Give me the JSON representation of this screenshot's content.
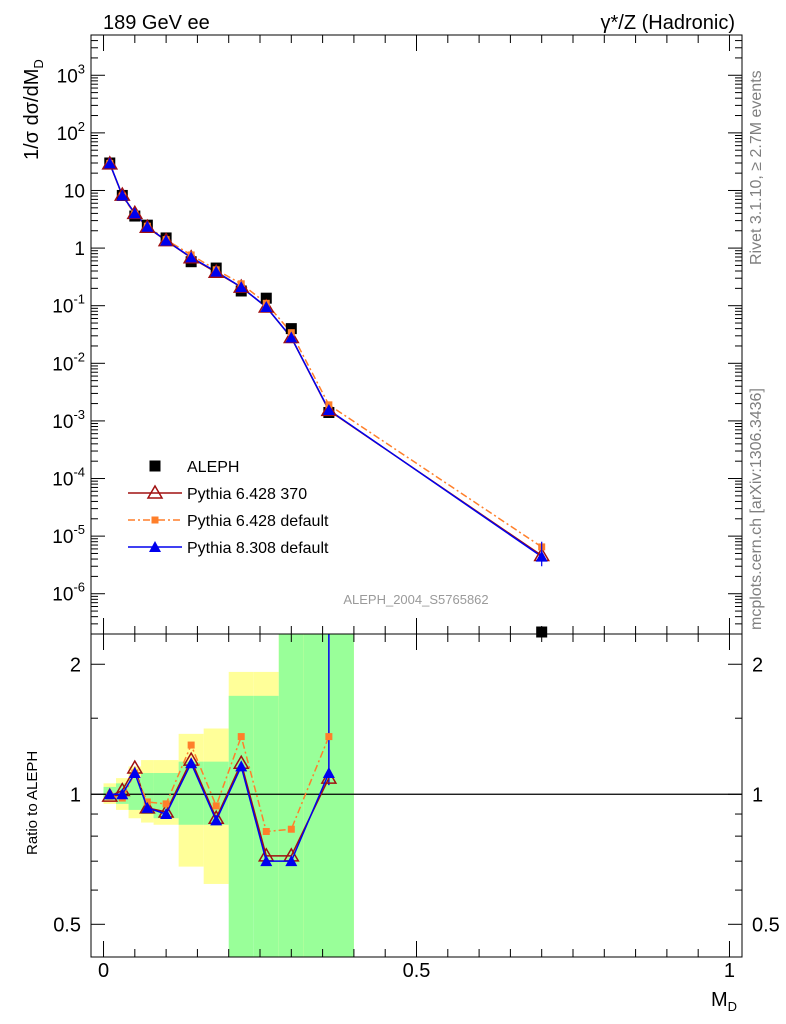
{
  "header": {
    "left": "189 GeV ee",
    "right_symbol": "γ*/Z",
    "right_text": "(Hadronic)"
  },
  "side_labels": {
    "rivet": "Rivet 3.1.10, ≥ 2.7M events",
    "mcplots": "mcplots.cern.ch [arXiv:1306.3436]"
  },
  "watermark": "ALEPH_2004_S5765862",
  "chart_data": [
    {
      "type": "line",
      "panel": "main",
      "ylabel": "1/σ  dσ/dM_D",
      "yscale": "log",
      "ylim": [
        2e-07,
        5000
      ],
      "xlim": [
        -0.02,
        1.02
      ],
      "yticks": [
        "10^-6",
        "10^-5",
        "10^-4",
        "10^-3",
        "10^-2",
        "10^-1",
        "1",
        "10",
        "10^2",
        "10^3"
      ],
      "legend_position": "bottom-left",
      "series": [
        {
          "name": "ALEPH",
          "color": "#000000",
          "marker": "square",
          "x": [
            0.01,
            0.03,
            0.05,
            0.07,
            0.1,
            0.14,
            0.18,
            0.22,
            0.26,
            0.3,
            0.36,
            0.7
          ],
          "y": [
            30,
            8.2,
            3.6,
            2.5,
            1.5,
            0.58,
            0.45,
            0.18,
            0.135,
            0.04,
            0.0014,
            2e-07
          ]
        },
        {
          "name": "Pythia 6.428 370",
          "color": "#a01010",
          "marker": "open-triangle",
          "x": [
            0.01,
            0.03,
            0.05,
            0.07,
            0.1,
            0.14,
            0.18,
            0.22,
            0.26,
            0.3,
            0.36,
            0.7
          ],
          "y": [
            29,
            8.3,
            4.0,
            2.3,
            1.35,
            0.68,
            0.38,
            0.21,
            0.095,
            0.028,
            0.00152,
            4.6e-06
          ]
        },
        {
          "name": "Pythia 6.428 default",
          "color": "#ff7f2a",
          "marker": "square",
          "dash": "dashdot",
          "x": [
            0.01,
            0.03,
            0.05,
            0.07,
            0.1,
            0.14,
            0.18,
            0.22,
            0.26,
            0.3,
            0.36,
            0.7
          ],
          "y": [
            29.5,
            8.0,
            3.9,
            2.4,
            1.4,
            0.76,
            0.42,
            0.24,
            0.11,
            0.034,
            0.0019,
            6.5e-06
          ]
        },
        {
          "name": "Pythia 8.308 default",
          "color": "#0000ee",
          "marker": "triangle",
          "x": [
            0.01,
            0.03,
            0.05,
            0.07,
            0.1,
            0.14,
            0.18,
            0.22,
            0.26,
            0.3,
            0.36,
            0.7
          ],
          "y": [
            29.6,
            8.2,
            4.0,
            2.35,
            1.35,
            0.69,
            0.39,
            0.21,
            0.095,
            0.028,
            0.00155,
            4.4e-06
          ]
        }
      ]
    },
    {
      "type": "line",
      "panel": "ratio",
      "xlabel": "M_D",
      "ylabel": "Ratio to ALEPH",
      "yscale": "log",
      "ylim": [
        0.42,
        2.35
      ],
      "xlim": [
        -0.02,
        1.02
      ],
      "xticks": [
        "0",
        "0.5",
        "1"
      ],
      "yticks": [
        "0.5",
        "1",
        "2"
      ],
      "bands": {
        "edges": [
          0,
          0.02,
          0.04,
          0.06,
          0.08,
          0.12,
          0.16,
          0.2,
          0.24,
          0.28,
          0.32,
          0.4
        ],
        "green_low": [
          0.97,
          0.95,
          0.92,
          0.9,
          0.88,
          0.85,
          0.85,
          0.3,
          0.3,
          0.3,
          0.3
        ],
        "green_high": [
          1.04,
          1.06,
          1.09,
          1.12,
          1.12,
          1.19,
          1.19,
          1.69,
          1.69,
          2.5,
          2.5
        ],
        "yellow_low": [
          0.95,
          0.92,
          0.88,
          0.86,
          0.85,
          0.68,
          0.62,
          0.56,
          0.56,
          0.3,
          0.3
        ],
        "yellow_high": [
          1.06,
          1.09,
          1.16,
          1.2,
          1.2,
          1.38,
          1.42,
          1.92,
          1.92,
          2.5,
          2.5
        ]
      },
      "series": [
        {
          "name": "Pythia 6.428 370",
          "color": "#a01010",
          "marker": "open-triangle",
          "x": [
            0.01,
            0.03,
            0.05,
            0.07,
            0.1,
            0.14,
            0.18,
            0.22,
            0.26,
            0.3,
            0.36
          ],
          "y": [
            0.99,
            1.02,
            1.15,
            0.93,
            0.91,
            1.2,
            0.88,
            1.18,
            0.72,
            0.72,
            1.09
          ]
        },
        {
          "name": "Pythia 6.428 default",
          "color": "#ff7f2a",
          "marker": "square",
          "dash": "dashdot",
          "x": [
            0.01,
            0.03,
            0.05,
            0.07,
            0.1,
            0.14,
            0.18,
            0.22,
            0.26,
            0.3,
            0.36
          ],
          "y": [
            0.99,
            0.98,
            1.12,
            0.96,
            0.95,
            1.3,
            0.94,
            1.36,
            0.82,
            0.83,
            1.36
          ]
        },
        {
          "name": "Pythia 8.308 default",
          "color": "#0000ee",
          "marker": "triangle",
          "x": [
            0.01,
            0.03,
            0.05,
            0.07,
            0.1,
            0.14,
            0.18,
            0.22,
            0.26,
            0.3,
            0.36
          ],
          "y": [
            1.0,
            1.0,
            1.12,
            0.93,
            0.9,
            1.18,
            0.87,
            1.16,
            0.7,
            0.7,
            1.12
          ]
        }
      ]
    }
  ]
}
